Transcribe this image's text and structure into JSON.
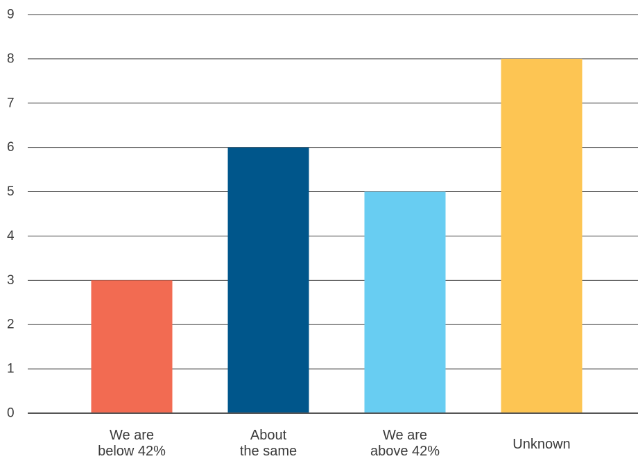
{
  "chart_data": {
    "type": "bar",
    "categories": [
      [
        "We are",
        "below 42%"
      ],
      [
        "About",
        "the same"
      ],
      [
        "We are",
        "above 42%"
      ],
      [
        "Unknown"
      ]
    ],
    "values": [
      3,
      6,
      5,
      8
    ],
    "colors": [
      "#f26b52",
      "#00568b",
      "#68cdf2",
      "#fdc553"
    ],
    "ylim": [
      0,
      9
    ],
    "yticks": [
      "0",
      "1",
      "2",
      "3",
      "4",
      "5",
      "6",
      "7",
      "8",
      "9"
    ],
    "grid": true,
    "title": "",
    "xlabel": "",
    "ylabel": ""
  }
}
